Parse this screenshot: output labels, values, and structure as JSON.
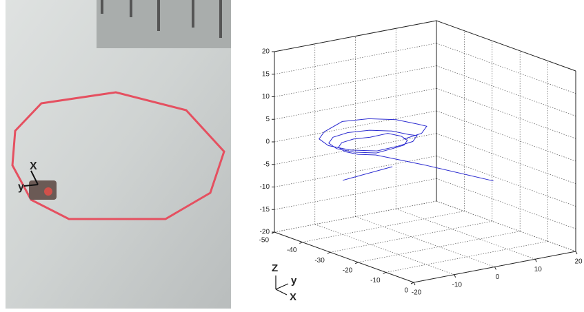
{
  "photo": {
    "axis_labels": [
      "X",
      "y"
    ]
  },
  "chart_data": {
    "type": "line3d",
    "xlim": [
      -50,
      0
    ],
    "xticks": [
      -50,
      -40,
      -30,
      -20,
      -10,
      0
    ],
    "ylim": [
      -20,
      20
    ],
    "yticks": [
      -20,
      -10,
      0,
      10,
      20
    ],
    "zlim": [
      -20,
      20
    ],
    "zticks": [
      -20,
      -15,
      -10,
      -5,
      0,
      5,
      10,
      15,
      20
    ],
    "grid": true,
    "axis_triad": [
      "Z",
      "y",
      "X"
    ],
    "series": [
      {
        "color": "#2b2bd0",
        "x": [
          -24,
          -25.5,
          -29.5,
          -35,
          -40.5,
          -44.5,
          -46,
          -44.5,
          -40.5,
          -35,
          -29.5,
          -25.5,
          -26,
          -27.2,
          -30.5,
          -35,
          -39.5,
          -42.8,
          -44,
          -42.8,
          -39.5,
          -35,
          -30.5,
          -27.2,
          -28,
          -28.9,
          -31.5,
          -35,
          -38.5,
          -41.1,
          -42,
          -41.1,
          -38.5,
          -35,
          -31.5,
          -28.9,
          -25,
          -15,
          null,
          -40,
          -28
        ],
        "y": [
          -6,
          -0.5,
          3.5,
          5,
          3.5,
          -0.5,
          -6,
          -11.5,
          -15.5,
          -17,
          -15.5,
          -11.5,
          -6,
          -1.5,
          1.8,
          3,
          1.8,
          -1.5,
          -6,
          -10.5,
          -13.8,
          -15,
          -13.8,
          -10.5,
          -6,
          -2.5,
          0.1,
          1,
          0.1,
          -2.5,
          -6,
          -9.5,
          -12.1,
          -13,
          -12.1,
          -9.5,
          0,
          10,
          null,
          -10,
          -6
        ],
        "z": [
          4,
          4,
          4,
          3,
          3,
          3,
          3,
          2,
          2,
          2,
          2,
          2,
          2,
          2,
          2,
          1,
          1,
          1,
          1,
          1,
          1,
          1,
          1,
          1,
          1,
          1,
          1,
          1,
          1,
          0,
          0,
          0,
          0,
          0,
          0,
          0,
          -3,
          -6,
          null,
          -8,
          -3
        ]
      }
    ]
  }
}
